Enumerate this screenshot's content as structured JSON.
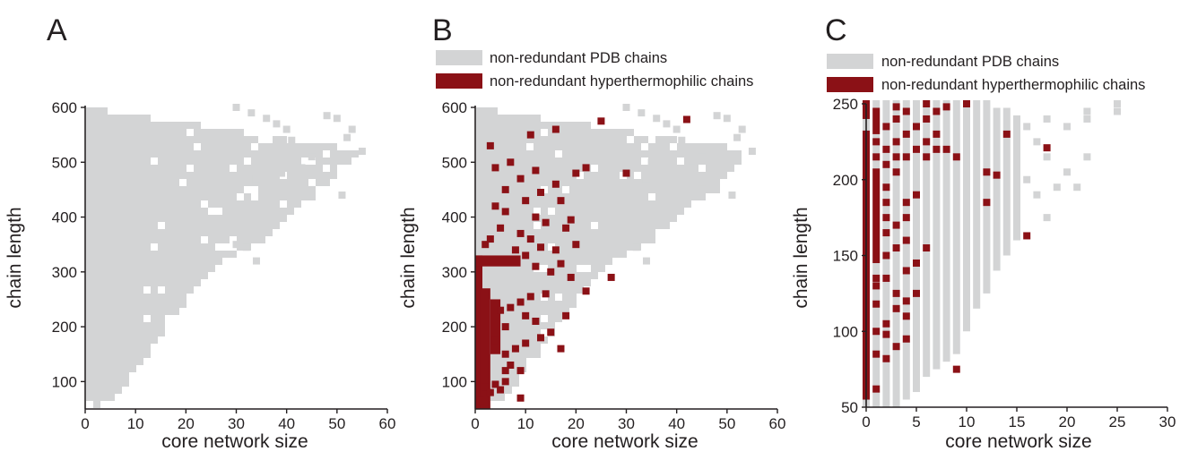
{
  "colors": {
    "pdb": "#d3d4d5",
    "hyperthermophilic": "#8b1116",
    "axis": "#231f20"
  },
  "chart_data": [
    {
      "panel": "A",
      "type": "scatter",
      "xlabel": "core network size",
      "ylabel": "chain length",
      "xlim": [
        0,
        60
      ],
      "ylim": [
        50,
        600
      ],
      "xticks": [
        0,
        10,
        20,
        30,
        40,
        50,
        60
      ],
      "yticks": [
        100,
        200,
        300,
        400,
        500,
        600
      ],
      "legend": [],
      "series": [
        {
          "id": "pdb",
          "envelope": [
            [
              0,
              60
            ],
            [
              3,
              55
            ],
            [
              6,
              70
            ],
            [
              10,
              120
            ],
            [
              14,
              170
            ],
            [
              18,
              220
            ],
            [
              22,
              270
            ],
            [
              26,
              310
            ],
            [
              30,
              330
            ],
            [
              36,
              360
            ],
            [
              42,
              420
            ],
            [
              48,
              450
            ],
            [
              55,
              520
            ],
            [
              0,
              600
            ]
          ],
          "extra_points": [
            [
              30,
              600
            ],
            [
              33,
              590
            ],
            [
              36,
              580
            ],
            [
              38,
              570
            ],
            [
              40,
              560
            ],
            [
              41,
              540
            ],
            [
              43,
              520
            ],
            [
              45,
              510
            ],
            [
              48,
              585
            ],
            [
              50,
              580
            ],
            [
              52,
              545
            ],
            [
              53,
              560
            ],
            [
              55,
              520
            ],
            [
              51,
              440
            ],
            [
              45,
              450
            ],
            [
              34,
              470
            ],
            [
              39,
              480
            ],
            [
              43,
              490
            ],
            [
              35,
              500
            ],
            [
              30,
              350
            ],
            [
              32,
              345
            ],
            [
              34,
              320
            ]
          ]
        }
      ]
    },
    {
      "panel": "B",
      "type": "scatter",
      "xlabel": "core network size",
      "ylabel": "chain length",
      "xlim": [
        0,
        60
      ],
      "ylim": [
        50,
        600
      ],
      "xticks": [
        0,
        10,
        20,
        30,
        40,
        50,
        60
      ],
      "yticks": [
        100,
        200,
        300,
        400,
        500,
        600
      ],
      "legend": [
        "non-redundant PDB chains",
        "non-redundant hyperthermophilic chains"
      ],
      "series": [
        {
          "id": "pdb",
          "envelope": [
            [
              0,
              60
            ],
            [
              3,
              55
            ],
            [
              6,
              70
            ],
            [
              10,
              120
            ],
            [
              14,
              170
            ],
            [
              18,
              220
            ],
            [
              22,
              270
            ],
            [
              26,
              310
            ],
            [
              30,
              330
            ],
            [
              36,
              360
            ],
            [
              42,
              420
            ],
            [
              48,
              450
            ],
            [
              55,
              520
            ],
            [
              0,
              600
            ]
          ],
          "extra_points": [
            [
              30,
              600
            ],
            [
              33,
              590
            ],
            [
              36,
              580
            ],
            [
              38,
              570
            ],
            [
              40,
              560
            ],
            [
              41,
              540
            ],
            [
              43,
              520
            ],
            [
              45,
              510
            ],
            [
              48,
              585
            ],
            [
              50,
              580
            ],
            [
              52,
              545
            ],
            [
              53,
              560
            ],
            [
              55,
              520
            ],
            [
              51,
              440
            ],
            [
              45,
              450
            ],
            [
              34,
              470
            ],
            [
              39,
              480
            ],
            [
              43,
              490
            ],
            [
              35,
              500
            ],
            [
              30,
              350
            ],
            [
              32,
              345
            ],
            [
              34,
              320
            ]
          ]
        },
        {
          "id": "hyperthermophilic",
          "bands": [
            {
              "x": [
                0,
                1
              ],
              "y": [
                50,
                330
              ]
            },
            {
              "x": [
                1,
                3
              ],
              "y": [
                50,
                270
              ]
            },
            {
              "x": [
                3,
                5
              ],
              "y": [
                150,
                250
              ]
            },
            {
              "x": [
                0,
                9
              ],
              "y": [
                310,
                330
              ]
            }
          ],
          "points": [
            [
              3,
              530
            ],
            [
              11,
              550
            ],
            [
              16,
              560
            ],
            [
              25,
              575
            ],
            [
              42,
              578
            ],
            [
              4,
              490
            ],
            [
              7,
              500
            ],
            [
              12,
              485
            ],
            [
              20,
              480
            ],
            [
              22,
              490
            ],
            [
              30,
              480
            ],
            [
              9,
              470
            ],
            [
              16,
              460
            ],
            [
              6,
              450
            ],
            [
              13,
              445
            ],
            [
              17,
              430
            ],
            [
              10,
              430
            ],
            [
              4,
              420
            ],
            [
              6,
              410
            ],
            [
              12,
              400
            ],
            [
              14,
              390
            ],
            [
              19,
              395
            ],
            [
              18,
              380
            ],
            [
              5,
              380
            ],
            [
              9,
              370
            ],
            [
              3,
              360
            ],
            [
              11,
              360
            ],
            [
              2,
              350
            ],
            [
              13,
              345
            ],
            [
              16,
              340
            ],
            [
              20,
              350
            ],
            [
              8,
              340
            ],
            [
              10,
              330
            ],
            [
              12,
              310
            ],
            [
              15,
              300
            ],
            [
              17,
              315
            ],
            [
              19,
              290
            ],
            [
              27,
              290
            ],
            [
              22,
              265
            ],
            [
              14,
              260
            ],
            [
              11,
              255
            ],
            [
              9,
              245
            ],
            [
              7,
              235
            ],
            [
              10,
              220
            ],
            [
              12,
              210
            ],
            [
              18,
              220
            ],
            [
              15,
              190
            ],
            [
              13,
              180
            ],
            [
              10,
              170
            ],
            [
              8,
              160
            ],
            [
              6,
              150
            ],
            [
              17,
              160
            ],
            [
              7,
              130
            ],
            [
              9,
              120
            ],
            [
              6,
              100
            ],
            [
              4,
              95
            ],
            [
              2,
              90
            ],
            [
              5,
              85
            ],
            [
              3,
              80
            ],
            [
              9,
              70
            ],
            [
              1,
              65
            ],
            [
              5,
              230
            ],
            [
              6,
              200
            ],
            [
              4,
              175
            ],
            [
              6,
              120
            ]
          ]
        }
      ]
    },
    {
      "panel": "C",
      "type": "scatter",
      "xlabel": "core network size",
      "ylabel": "chain length",
      "xlim": [
        0,
        30
      ],
      "ylim": [
        50,
        250
      ],
      "xticks": [
        0,
        5,
        10,
        15,
        20,
        25,
        30
      ],
      "yticks": [
        50,
        100,
        150,
        200,
        250
      ],
      "legend": [
        "non-redundant PDB chains",
        "non-redundant hyperthermophilic chains"
      ],
      "series": [
        {
          "id": "pdb",
          "columns": [
            {
              "x": 0,
              "y": [
                50,
                250
              ]
            },
            {
              "x": 1,
              "y": [
                50,
                250
              ]
            },
            {
              "x": 2,
              "y": [
                50,
                250
              ]
            },
            {
              "x": 3,
              "y": [
                50,
                250
              ]
            },
            {
              "x": 4,
              "y": [
                55,
                250
              ]
            },
            {
              "x": 5,
              "y": [
                60,
                250
              ]
            },
            {
              "x": 6,
              "y": [
                70,
                250
              ]
            },
            {
              "x": 7,
              "y": [
                75,
                250
              ]
            },
            {
              "x": 8,
              "y": [
                80,
                250
              ]
            },
            {
              "x": 9,
              "y": [
                85,
                250
              ]
            },
            {
              "x": 10,
              "y": [
                100,
                250
              ]
            },
            {
              "x": 11,
              "y": [
                115,
                250
              ]
            },
            {
              "x": 12,
              "y": [
                125,
                250
              ]
            },
            {
              "x": 13,
              "y": [
                140,
                245
              ]
            },
            {
              "x": 14,
              "y": [
                150,
                245
              ]
            },
            {
              "x": 15,
              "y": [
                160,
                240
              ]
            }
          ],
          "points": [
            [
              16,
              200
            ],
            [
              16,
              235
            ],
            [
              17,
              190
            ],
            [
              17,
              225
            ],
            [
              18,
              175
            ],
            [
              18,
              215
            ],
            [
              18,
              240
            ],
            [
              19,
              195
            ],
            [
              20,
              205
            ],
            [
              20,
              235
            ],
            [
              21,
              195
            ],
            [
              22,
              215
            ],
            [
              22,
              240
            ],
            [
              22,
              245
            ],
            [
              25,
              245
            ],
            [
              25,
              250
            ]
          ]
        },
        {
          "id": "hyperthermophilic",
          "columns": [
            {
              "x": 0,
              "y": [
                55,
                230
              ]
            },
            {
              "x": 0,
              "y": [
                240,
                250
              ]
            },
            {
              "x": 1,
              "y": [
                145,
                205
              ]
            },
            {
              "x": 1,
              "y": [
                230,
                245
              ]
            }
          ],
          "points": [
            [
              1,
              62
            ],
            [
              1,
              85
            ],
            [
              1,
              100
            ],
            [
              1,
              118
            ],
            [
              1,
              130
            ],
            [
              1,
              135
            ],
            [
              1,
              215
            ],
            [
              1,
              225
            ],
            [
              2,
              82
            ],
            [
              2,
              98
            ],
            [
              2,
              105
            ],
            [
              2,
              135
            ],
            [
              2,
              150
            ],
            [
              2,
              165
            ],
            [
              2,
              175
            ],
            [
              2,
              185
            ],
            [
              2,
              195
            ],
            [
              2,
              210
            ],
            [
              2,
              220
            ],
            [
              2,
              235
            ],
            [
              3,
              90
            ],
            [
              3,
              115
            ],
            [
              3,
              125
            ],
            [
              3,
              155
            ],
            [
              3,
              170
            ],
            [
              3,
              205
            ],
            [
              3,
              215
            ],
            [
              3,
              225
            ],
            [
              3,
              240
            ],
            [
              3,
              248
            ],
            [
              4,
              95
            ],
            [
              4,
              110
            ],
            [
              4,
              120
            ],
            [
              4,
              140
            ],
            [
              4,
              160
            ],
            [
              4,
              175
            ],
            [
              4,
              185
            ],
            [
              4,
              215
            ],
            [
              4,
              230
            ],
            [
              4,
              245
            ],
            [
              5,
              125
            ],
            [
              5,
              145
            ],
            [
              5,
              190
            ],
            [
              5,
              220
            ],
            [
              5,
              235
            ],
            [
              6,
              155
            ],
            [
              6,
              215
            ],
            [
              6,
              225
            ],
            [
              6,
              240
            ],
            [
              6,
              250
            ],
            [
              7,
              220
            ],
            [
              7,
              230
            ],
            [
              7,
              245
            ],
            [
              8,
              220
            ],
            [
              8,
              248
            ],
            [
              9,
              75
            ],
            [
              9,
              215
            ],
            [
              10,
              250
            ],
            [
              12,
              185
            ],
            [
              12,
              205
            ],
            [
              13,
              203
            ],
            [
              14,
              230
            ],
            [
              16,
              163
            ],
            [
              18,
              221
            ]
          ]
        }
      ]
    }
  ]
}
